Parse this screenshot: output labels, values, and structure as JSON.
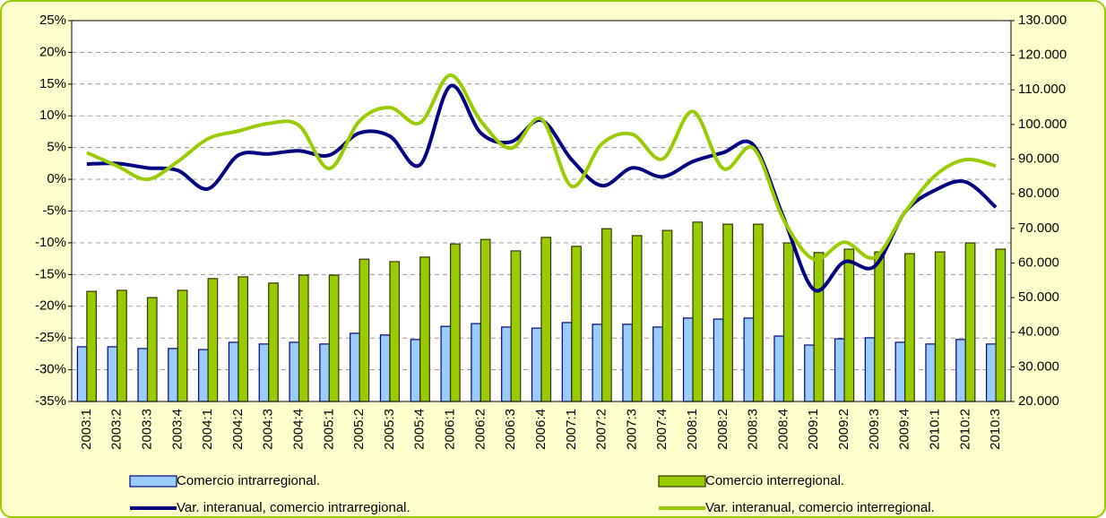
{
  "chart_data": {
    "type": "combo",
    "categories": [
      "2003:1",
      "2003:2",
      "2003:3",
      "2003:4",
      "2004:1",
      "2004:2",
      "2004:3",
      "2004:4",
      "2005:1",
      "2005:2",
      "2005:3",
      "2005:4",
      "2006:1",
      "2006:2",
      "2006:3",
      "2006:4",
      "2007:1",
      "2007:2",
      "2007:3",
      "2007:4",
      "2008:1",
      "2008:2",
      "2008:3",
      "2008:4",
      "2009:1",
      "2009:2",
      "2009:3",
      "2009:4",
      "2010:1",
      "2010:2",
      "2010:3"
    ],
    "series": [
      {
        "name": "Comercio intrarregional.",
        "type": "bar",
        "axis": "y2",
        "color": "#99ccff",
        "edge": "#000080",
        "values": [
          35800,
          35800,
          35300,
          35300,
          35000,
          37100,
          36600,
          37100,
          36600,
          39700,
          39200,
          37900,
          41700,
          42500,
          41500,
          41200,
          42800,
          42300,
          42300,
          41500,
          44100,
          43800,
          44100,
          38900,
          36300,
          38100,
          38400,
          37100,
          36600,
          37900,
          36600
        ]
      },
      {
        "name": "Comercio interregional.",
        "type": "bar",
        "axis": "y2",
        "color": "#99cc00",
        "edge": "#333300",
        "values": [
          51800,
          52100,
          50000,
          52100,
          55500,
          56000,
          54200,
          56500,
          56500,
          61100,
          60400,
          61700,
          65500,
          66800,
          63500,
          67400,
          64800,
          69900,
          67900,
          69400,
          71800,
          71200,
          71200,
          65800,
          63000,
          64000,
          63200,
          62700,
          63200,
          65800,
          64000
        ]
      },
      {
        "name": "Var. interanual, comercio intrarregional.",
        "type": "line",
        "axis": "y",
        "color": "#000080",
        "values": [
          2.4,
          2.5,
          1.8,
          1.4,
          -1.5,
          3.8,
          4.0,
          4.5,
          3.8,
          7.3,
          6.8,
          2.3,
          14.7,
          7.3,
          5.9,
          9.3,
          3.1,
          -1.0,
          1.8,
          0.4,
          2.8,
          4.2,
          5.4,
          -6.1,
          -17.4,
          -13.0,
          -13.7,
          -5.2,
          -1.7,
          -0.4,
          -4.4
        ]
      },
      {
        "name": "Var. interanual, comercio interregional.",
        "type": "line",
        "axis": "y",
        "color": "#99cc00",
        "values": [
          4.2,
          2.1,
          0.0,
          2.8,
          6.4,
          7.6,
          8.8,
          8.5,
          1.7,
          9.2,
          11.3,
          8.9,
          16.4,
          9.2,
          4.9,
          9.5,
          -1.1,
          5.6,
          7.1,
          3.2,
          10.7,
          1.7,
          4.9,
          -6.4,
          -12.6,
          -9.9,
          -12.3,
          -5.2,
          0.6,
          3.1,
          2.1
        ]
      }
    ],
    "ylim": [
      -35,
      25
    ],
    "yticks": [
      {
        "value": -35,
        "label": "-35%"
      },
      {
        "value": -30,
        "label": "-30%"
      },
      {
        "value": -25,
        "label": "-25%"
      },
      {
        "value": -20,
        "label": "-20%"
      },
      {
        "value": -15,
        "label": "-15%"
      },
      {
        "value": -10,
        "label": "-10%"
      },
      {
        "value": -5,
        "label": "-5%"
      },
      {
        "value": 0,
        "label": "0%"
      },
      {
        "value": 5,
        "label": "5%"
      },
      {
        "value": 10,
        "label": "10%"
      },
      {
        "value": 15,
        "label": "15%"
      },
      {
        "value": 20,
        "label": "20%"
      },
      {
        "value": 25,
        "label": "25%"
      }
    ],
    "y2lim": [
      20000,
      130000
    ],
    "y2ticks": [
      {
        "value": 20000,
        "label": "20.000"
      },
      {
        "value": 30000,
        "label": "30.000"
      },
      {
        "value": 40000,
        "label": "40.000"
      },
      {
        "value": 50000,
        "label": "50.000"
      },
      {
        "value": 60000,
        "label": "60.000"
      },
      {
        "value": 70000,
        "label": "70.000"
      },
      {
        "value": 80000,
        "label": "80.000"
      },
      {
        "value": 90000,
        "label": "90.000"
      },
      {
        "value": 100000,
        "label": "100.000"
      },
      {
        "value": 110000,
        "label": "110.000"
      },
      {
        "value": 120000,
        "label": "120.000"
      },
      {
        "value": 130000,
        "label": "130.000"
      }
    ],
    "grid": true,
    "legend": "bottom"
  }
}
